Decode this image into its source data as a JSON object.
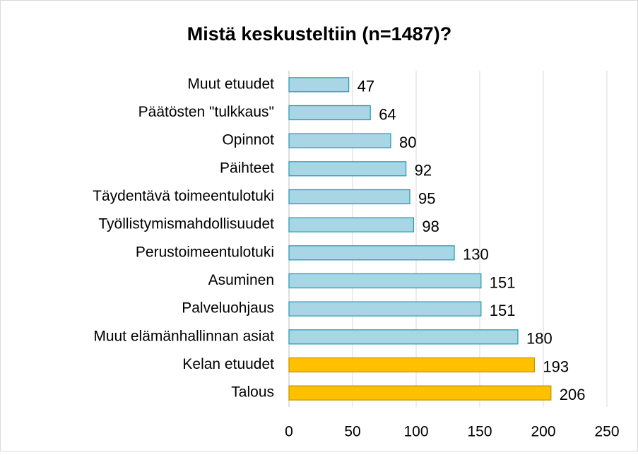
{
  "chart_data": {
    "type": "bar",
    "orientation": "horizontal",
    "title": "Mistä keskusteltiin (n=1487)?",
    "categories": [
      "Muut etuudet",
      "Päätösten \"tulkkaus\"",
      "Opinnot",
      "Päihteet",
      "Täydentävä toimeentulotuki",
      "Työllistymismahdollisuudet",
      "Perustoimeentulotuki",
      "Asuminen",
      "Palveluohjaus",
      "Muut elämänhallinnan asiat",
      "Kelan etuudet",
      "Talous"
    ],
    "values": [
      47,
      64,
      80,
      92,
      95,
      98,
      130,
      151,
      151,
      180,
      193,
      206
    ],
    "colors": [
      "#a9d6e4",
      "#a9d6e4",
      "#a9d6e4",
      "#a9d6e4",
      "#a9d6e4",
      "#a9d6e4",
      "#a9d6e4",
      "#a9d6e4",
      "#a9d6e4",
      "#a9d6e4",
      "#ffc000",
      "#ffc000"
    ],
    "xlim": [
      0,
      250
    ],
    "xticks": [
      0,
      50,
      100,
      150,
      200,
      250
    ],
    "grid": true
  }
}
